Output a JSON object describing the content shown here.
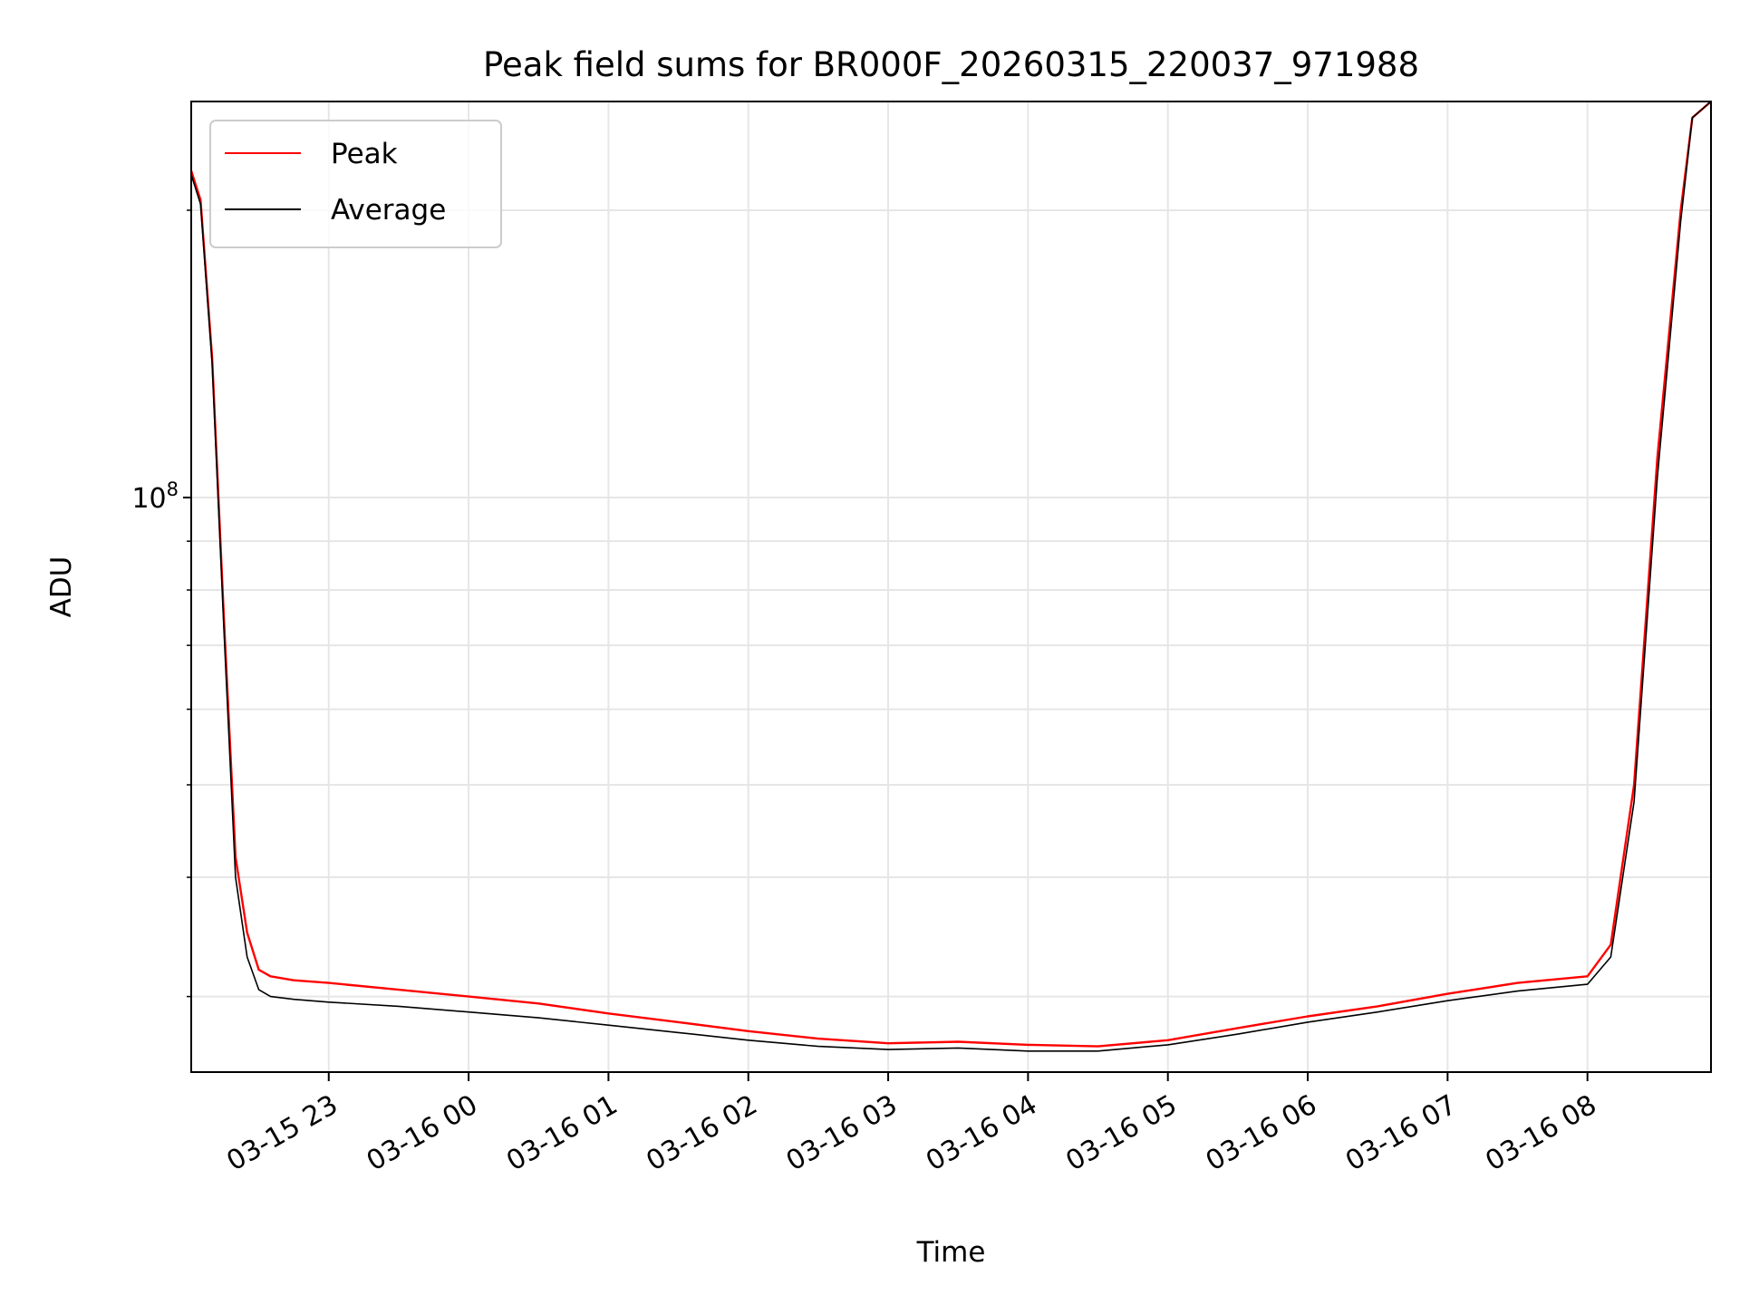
{
  "chart_data": {
    "type": "line",
    "title": "Peak field sums for BR000F_20260315_220037_971988",
    "xlabel": "Time",
    "ylabel": "ADU",
    "y_scale": "log",
    "ylim": [
      25000000,
      260000000
    ],
    "xlim": [
      "2026-03-15 22:01",
      "2026-03-16 08:53"
    ],
    "x_ticks": [
      "03-15 23",
      "03-16 00",
      "03-16 01",
      "03-16 02",
      "03-16 03",
      "03-16 04",
      "03-16 05",
      "03-16 06",
      "03-16 07",
      "03-16 08"
    ],
    "y_ticks": [
      {
        "value": 100000000,
        "label": "10^8"
      }
    ],
    "grid": true,
    "legend": "upper left",
    "series": [
      {
        "name": "Peak",
        "color": "#ff0000",
        "x": [
          "2026-03-15 22:01",
          "2026-03-15 22:05",
          "2026-03-15 22:10",
          "2026-03-15 22:15",
          "2026-03-15 22:20",
          "2026-03-15 22:25",
          "2026-03-15 22:30",
          "2026-03-15 22:35",
          "2026-03-15 22:45",
          "2026-03-15 23:00",
          "2026-03-15 23:30",
          "2026-03-16 00:00",
          "2026-03-16 00:30",
          "2026-03-16 01:00",
          "2026-03-16 01:30",
          "2026-03-16 02:00",
          "2026-03-16 02:30",
          "2026-03-16 03:00",
          "2026-03-16 03:30",
          "2026-03-16 04:00",
          "2026-03-16 04:30",
          "2026-03-16 05:00",
          "2026-03-16 05:30",
          "2026-03-16 06:00",
          "2026-03-16 06:30",
          "2026-03-16 07:00",
          "2026-03-16 07:30",
          "2026-03-16 08:00",
          "2026-03-16 08:10",
          "2026-03-16 08:20",
          "2026-03-16 08:30",
          "2026-03-16 08:40",
          "2026-03-16 08:45",
          "2026-03-16 08:53"
        ],
        "values": [
          220000000,
          205000000,
          140000000,
          75000000,
          42000000,
          35000000,
          32000000,
          31500000,
          31200000,
          31000000,
          30500000,
          30000000,
          29500000,
          28800000,
          28200000,
          27600000,
          27100000,
          26800000,
          26900000,
          26700000,
          26600000,
          27000000,
          27800000,
          28600000,
          29300000,
          30200000,
          31000000,
          31500000,
          34000000,
          50000000,
          110000000,
          200000000,
          250000000,
          260000000
        ]
      },
      {
        "name": "Average",
        "color": "#000000",
        "x": [
          "2026-03-15 22:01",
          "2026-03-15 22:05",
          "2026-03-15 22:10",
          "2026-03-15 22:15",
          "2026-03-15 22:20",
          "2026-03-15 22:25",
          "2026-03-15 22:30",
          "2026-03-15 22:35",
          "2026-03-15 22:45",
          "2026-03-15 23:00",
          "2026-03-15 23:30",
          "2026-03-16 00:00",
          "2026-03-16 00:30",
          "2026-03-16 01:00",
          "2026-03-16 01:30",
          "2026-03-16 02:00",
          "2026-03-16 02:30",
          "2026-03-16 03:00",
          "2026-03-16 03:30",
          "2026-03-16 04:00",
          "2026-03-16 04:30",
          "2026-03-16 05:00",
          "2026-03-16 05:30",
          "2026-03-16 06:00",
          "2026-03-16 06:30",
          "2026-03-16 07:00",
          "2026-03-16 07:30",
          "2026-03-16 08:00",
          "2026-03-16 08:10",
          "2026-03-16 08:20",
          "2026-03-16 08:30",
          "2026-03-16 08:40",
          "2026-03-16 08:45",
          "2026-03-16 08:53"
        ],
        "values": [
          218000000,
          203000000,
          138000000,
          73000000,
          40000000,
          33000000,
          30500000,
          30000000,
          29800000,
          29600000,
          29300000,
          28900000,
          28500000,
          28000000,
          27500000,
          27000000,
          26600000,
          26400000,
          26500000,
          26300000,
          26300000,
          26700000,
          27400000,
          28200000,
          28900000,
          29700000,
          30400000,
          30900000,
          33000000,
          48000000,
          105000000,
          195000000,
          250000000,
          260000000
        ]
      }
    ]
  }
}
